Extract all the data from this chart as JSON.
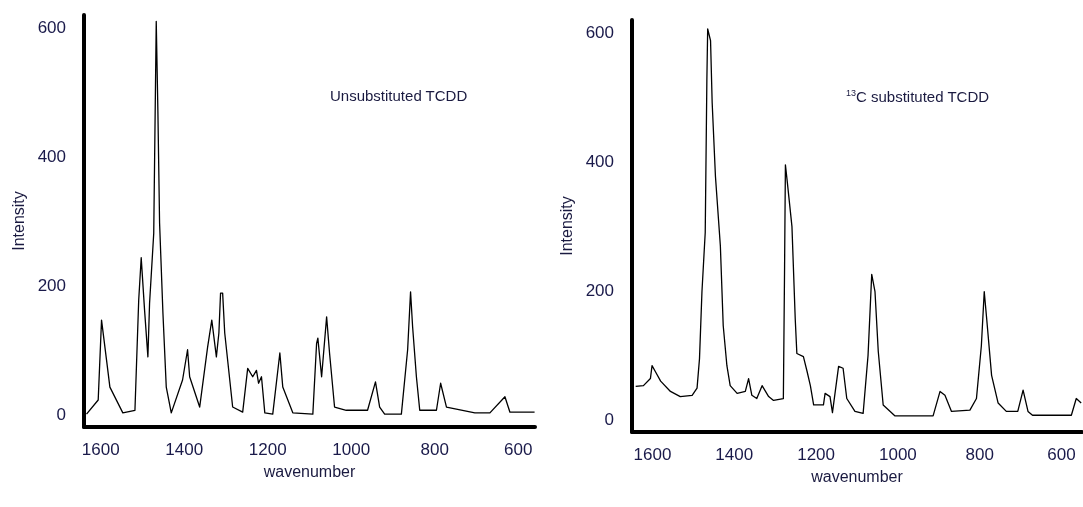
{
  "chart_data": [
    {
      "type": "line",
      "xlabel": "wavenumber",
      "ylabel": "Intensity",
      "annotations": [
        "Unsubstituted TCDD"
      ],
      "xlim": [
        1640,
        560
      ],
      "xticks": [
        1600,
        1400,
        1200,
        1000,
        800,
        600
      ],
      "ylim": [
        -20,
        620
      ],
      "yticks": [
        0,
        200,
        400,
        600
      ],
      "marker": "none",
      "line_style": "solid",
      "series": [
        {
          "color": "#000000",
          "x": [
            1634,
            1606,
            1598,
            1586,
            1578,
            1547,
            1518,
            1509,
            1503,
            1495,
            1487,
            1483,
            1473,
            1467,
            1463,
            1459,
            1451,
            1443,
            1431,
            1404,
            1392,
            1387,
            1363,
            1344,
            1334,
            1323,
            1317,
            1313,
            1308,
            1303,
            1284,
            1260,
            1248,
            1236,
            1227,
            1222,
            1215,
            1207,
            1188,
            1171,
            1164,
            1140,
            1092,
            1083,
            1080,
            1071,
            1059,
            1052,
            1040,
            1012,
            961,
            942,
            932,
            920,
            880,
            865,
            858,
            853,
            844,
            836,
            796,
            786,
            772,
            704,
            668,
            632,
            620,
            561
          ],
          "values": [
            0,
            22,
            146,
            84,
            42,
            2,
            6,
            177,
            243,
            162,
            89,
            172,
            281,
            610,
            468,
            297,
            157,
            42,
            2,
            53,
            100,
            58,
            11,
            104,
            146,
            89,
            126,
            188,
            188,
            126,
            11,
            3,
            71,
            58,
            68,
            48,
            58,
            2,
            0,
            95,
            42,
            2,
            0,
            110,
            118,
            58,
            151,
            95,
            11,
            6,
            6,
            50,
            11,
            0,
            0,
            100,
            190,
            135,
            58,
            6,
            6,
            48,
            11,
            2,
            2,
            27,
            3,
            3
          ]
        }
      ]
    },
    {
      "type": "line",
      "xlabel": "wavenumber",
      "ylabel": "Intensity",
      "annotations": [
        "$^{13}$C substituted TCDD"
      ],
      "xlim": [
        1650,
        550
      ],
      "xticks": [
        1600,
        1400,
        1200,
        1000,
        800,
        600
      ],
      "ylim": [
        -20,
        620
      ],
      "yticks": [
        0,
        200,
        400,
        600
      ],
      "marker": "none",
      "line_style": "solid",
      "series": [
        {
          "color": "#000000",
          "x": [
            1641,
            1622,
            1605,
            1601,
            1593,
            1580,
            1556,
            1532,
            1503,
            1491,
            1485,
            1479,
            1471,
            1467,
            1465,
            1458,
            1454,
            1446,
            1434,
            1427,
            1418,
            1410,
            1393,
            1373,
            1365,
            1357,
            1345,
            1332,
            1316,
            1304,
            1280,
            1277,
            1275,
            1271,
            1259,
            1251,
            1247,
            1231,
            1222,
            1214,
            1206,
            1182,
            1178,
            1166,
            1160,
            1145,
            1134,
            1125,
            1105,
            1085,
            1073,
            1064,
            1056,
            1048,
            1036,
            1007,
            914,
            897,
            885,
            869,
            824,
            808,
            796,
            789,
            783,
            771,
            755,
            735,
            707,
            694,
            682,
            671,
            576,
            564,
            552
          ],
          "values": [
            51,
            52,
            63,
            83,
            74,
            59,
            43,
            35,
            37,
            48,
            94,
            198,
            290,
            526,
            606,
            588,
            491,
            377,
            269,
            145,
            83,
            52,
            40,
            43,
            63,
            37,
            32,
            52,
            35,
            29,
            32,
            238,
            395,
            372,
            299,
            156,
            102,
            97,
            74,
            52,
            22,
            22,
            40,
            35,
            10,
            82,
            79,
            32,
            12,
            9,
            99,
            225,
            198,
            105,
            22,
            5,
            5,
            43,
            37,
            12,
            14,
            32,
            114,
            198,
            156,
            68,
            25,
            12,
            12,
            45,
            12,
            6,
            6,
            32,
            25
          ]
        }
      ]
    }
  ]
}
